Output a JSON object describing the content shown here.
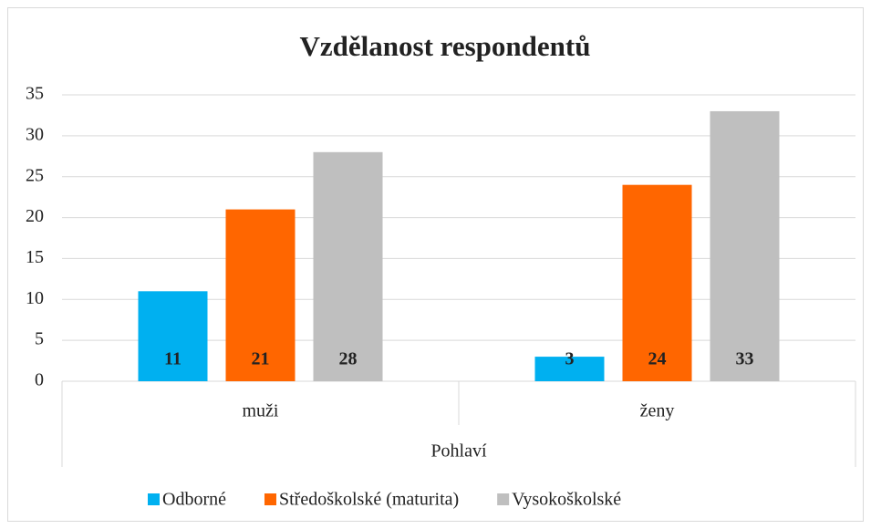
{
  "chart_data": {
    "type": "bar",
    "title": "Vzdělanost respondentů",
    "categories": [
      "muži",
      "ženy"
    ],
    "xlabel": "Pohlaví",
    "series": [
      {
        "name": "Odborné",
        "color": "#00b0f0",
        "values": [
          11,
          3
        ]
      },
      {
        "name": "Středoškolské (maturita)",
        "color": "#ff6600",
        "values": [
          21,
          24
        ]
      },
      {
        "name": "Vysokoškolské",
        "color": "#bfbfbf",
        "values": [
          28,
          33
        ]
      }
    ],
    "ylim": [
      0,
      35
    ],
    "yticks": [
      0,
      5,
      10,
      15,
      20,
      25,
      30,
      35
    ],
    "grid": true,
    "legend": "bottom"
  }
}
